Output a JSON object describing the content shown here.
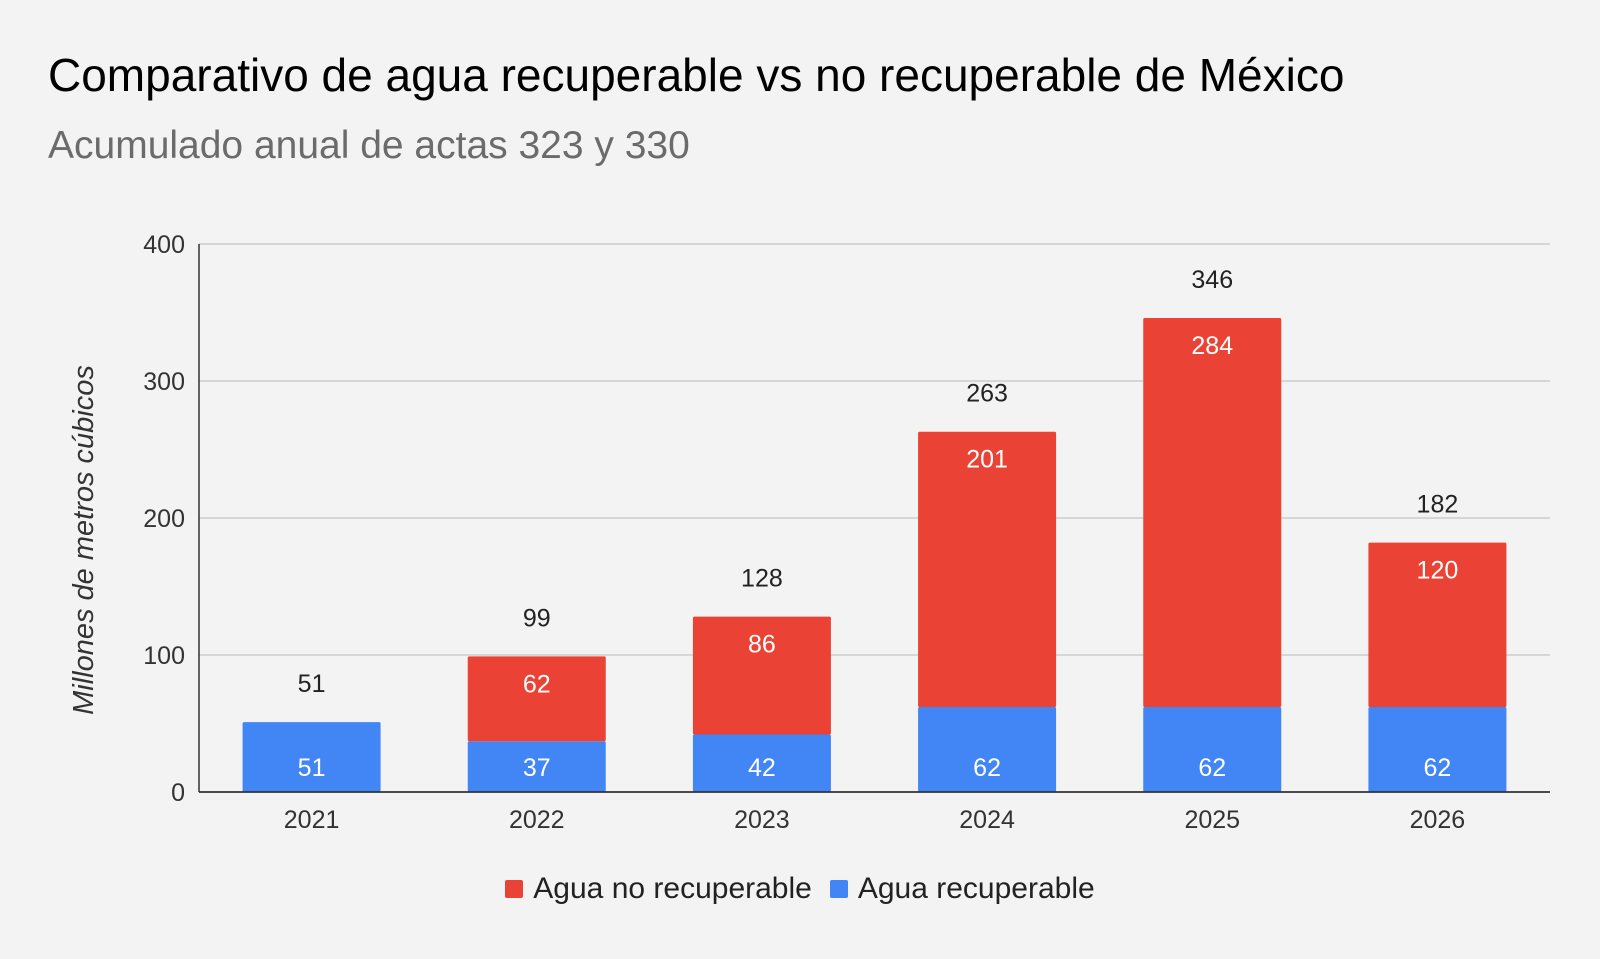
{
  "chart_data": {
    "type": "bar",
    "stacked": true,
    "title": "Comparativo de agua recuperable vs no recuperable de México",
    "subtitle": "Acumulado anual de actas 323 y 330",
    "ylabel": "Millones de metros cúbicos",
    "xlabel": "",
    "ylim": [
      0,
      400
    ],
    "yticks": [
      0,
      100,
      200,
      300,
      400
    ],
    "grid": true,
    "legend_position": "bottom",
    "categories": [
      "2021",
      "2022",
      "2023",
      "2024",
      "2025",
      "2026"
    ],
    "series": [
      {
        "name": "Agua recuperable",
        "color": "#4285f4",
        "values": [
          51,
          37,
          42,
          62,
          62,
          62
        ],
        "labels": [
          "51",
          "37",
          "42",
          "62",
          "62",
          "62"
        ]
      },
      {
        "name": "Agua no recuperable",
        "color": "#ea4335",
        "values": [
          0,
          62,
          86,
          201,
          284,
          120
        ],
        "labels": [
          "",
          "62",
          "86",
          "201",
          "284",
          "120"
        ]
      }
    ],
    "totals": [
      51,
      99,
      128,
      263,
      346,
      182
    ],
    "total_labels": [
      "51",
      "99",
      "128",
      "263",
      "346",
      "182"
    ],
    "legend_order": [
      "Agua no recuperable",
      "Agua recuperable"
    ]
  }
}
